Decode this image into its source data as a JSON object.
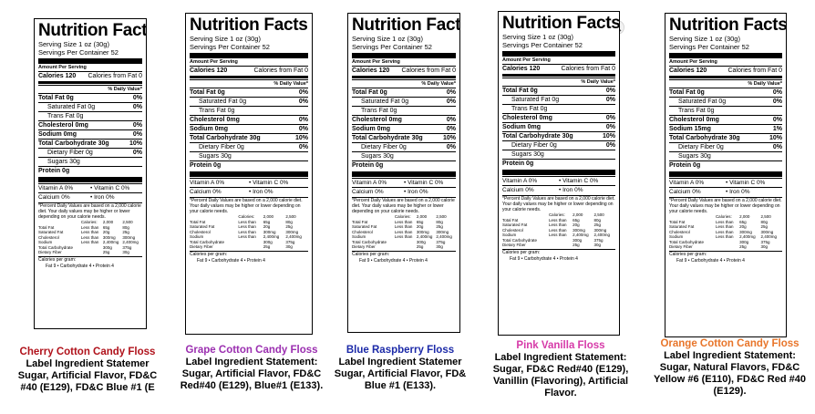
{
  "panels": [
    {
      "title": "Nutrition Facts",
      "serving_size": "Serving Size 1 oz (30g)",
      "servings": "Servings Per Container 52",
      "amount_per_serving": "Amount Per Serving",
      "calories": "Calories 120",
      "calories_fat": "Calories from Fat 0",
      "daily_value": "% Daily Value*",
      "total_fat": "Total Fat 0g",
      "total_fat_dv": "0%",
      "sat_fat": "Saturated Fat 0g",
      "sat_fat_dv": "0%",
      "trans_fat": "Trans Fat 0g",
      "cholesterol": "Cholesterol 0mg",
      "cholesterol_dv": "0%",
      "sodium": "Sodium 0mg",
      "sodium_dv": "0%",
      "carb": "Total Carbohydrate 30g",
      "carb_dv": "10%",
      "fiber": "Dietary Fiber 0g",
      "fiber_dv": "0%",
      "sugars": "Sugars 30g",
      "protein": "Protein 0g",
      "vit_a": "Vitamin A 0%",
      "vit_c": "• Vitamin C 0%",
      "calcium": "Calcium 0%",
      "iron": "• Iron 0%",
      "footnote": "*Percent Daily Values are based on a 2,000 calorie diet. Your daily values may be higher or lower depending on your calorie needs.",
      "cal_per_gram": "Calories per gram:",
      "cal_per_gram_vals": "Fat 9 • Carbohydrate 4 • Protein 4"
    },
    {
      "title": "Nutrition Facts",
      "serving_size": "Serving Size 1 oz (30g)",
      "servings": "Servings Per Container 52",
      "amount_per_serving": "Amount Per Serving",
      "calories": "Calories 120",
      "calories_fat": "Calories from Fat 0",
      "daily_value": "% Daily Value*",
      "total_fat": "Total Fat 0g",
      "total_fat_dv": "0%",
      "sat_fat": "Saturated Fat 0g",
      "sat_fat_dv": "0%",
      "trans_fat": "Trans Fat 0g",
      "cholesterol": "Cholesterol 0mg",
      "cholesterol_dv": "0%",
      "sodium": "Sodium 0mg",
      "sodium_dv": "0%",
      "carb": "Total Carbohydrate 30g",
      "carb_dv": "10%",
      "fiber": "Dietary Fiber 0g",
      "fiber_dv": "0%",
      "sugars": "Sugars 30g",
      "protein": "Protein 0g",
      "vit_a": "Vitamin A 0%",
      "vit_c": "• Vitamin C 0%",
      "calcium": "Calcium 0%",
      "iron": "• Iron 0%",
      "footnote": "*Percent Daily Values are based on a 2,000 calorie diet. Your daily values may be higher or lower depending on your calorie needs.",
      "cal_per_gram": "Calories per gram:",
      "cal_per_gram_vals": "Fat 9 • Carbohydrate 4 • Protein 4"
    },
    {
      "title": "Nutrition Facts",
      "serving_size": "Serving Size 1 oz (30g)",
      "servings": "Servings Per Container 52",
      "amount_per_serving": "Amount Per Serving",
      "calories": "Calories 120",
      "calories_fat": "Calories from Fat 0",
      "daily_value": "% Daily Value*",
      "total_fat": "Total Fat 0g",
      "total_fat_dv": "0%",
      "sat_fat": "Saturated Fat 0g",
      "sat_fat_dv": "0%",
      "trans_fat": "Trans Fat 0g",
      "cholesterol": "Cholesterol 0mg",
      "cholesterol_dv": "0%",
      "sodium": "Sodium 0mg",
      "sodium_dv": "0%",
      "carb": "Total Carbohydrate 30g",
      "carb_dv": "10%",
      "fiber": "Dietary Fiber 0g",
      "fiber_dv": "0%",
      "sugars": "Sugars 30g",
      "protein": "Protein 0g",
      "vit_a": "Vitamin A 0%",
      "vit_c": "• Vitamin C 0%",
      "calcium": "Calcium 0%",
      "iron": "• Iron 0%",
      "footnote": "*Percent Daily Values are based on a 2,000 calorie diet. Your daily values may be higher or lower depending on your calorie needs.",
      "cal_per_gram": "Calories per gram:",
      "cal_per_gram_vals": "Fat 9 • Carbohydrate 4 • Protein 4"
    },
    {
      "title": "Nutrition Facts",
      "serving_size": "Serving Size 1 oz (30g)",
      "servings": "Servings Per Container 52",
      "amount_per_serving": "Amount Per Serving",
      "calories": "Calories 120",
      "calories_fat": "Calories from Fat 0",
      "daily_value": "% Daily Value*",
      "total_fat": "Total Fat 0g",
      "total_fat_dv": "0%",
      "sat_fat": "Saturated Fat 0g",
      "sat_fat_dv": "0%",
      "trans_fat": "Trans Fat 0g",
      "cholesterol": "Cholesterol 0mg",
      "cholesterol_dv": "0%",
      "sodium": "Sodium 0mg",
      "sodium_dv": "0%",
      "carb": "Total Carbohydrate 30g",
      "carb_dv": "10%",
      "fiber": "Dietary Fiber 0g",
      "fiber_dv": "0%",
      "sugars": "Sugars 30g",
      "protein": "Protein 0g",
      "vit_a": "Vitamin A 0%",
      "vit_c": "• Vitamin C 0%",
      "calcium": "Calcium 0%",
      "iron": "• Iron 0%",
      "footnote": "*Percent Daily Values are based on a 2,000 calorie diet. Your daily values may be higher or lower depending on your calorie needs.",
      "cal_per_gram": "Calories per gram:",
      "cal_per_gram_vals": "Fat 9 • Carbohydrate 4 • Protein 4"
    },
    {
      "title": "Nutrition Facts",
      "serving_size": "Serving Size 1 oz (30g)",
      "servings": "Servings Per Container 52",
      "amount_per_serving": "Amount Per Serving",
      "calories": "Calories 120",
      "calories_fat": "Calories from Fat 0",
      "daily_value": "% Daily Value*",
      "total_fat": "Total Fat 0g",
      "total_fat_dv": "0%",
      "sat_fat": "Saturated Fat 0g",
      "sat_fat_dv": "0%",
      "trans_fat": "Trans Fat 0g",
      "cholesterol": "Cholesterol 0mg",
      "cholesterol_dv": "0%",
      "sodium": "Sodium 15mg",
      "sodium_dv": "1%",
      "carb": "Total Carbohydrate 30g",
      "carb_dv": "10%",
      "fiber": "Dietary Fiber 0g",
      "fiber_dv": "0%",
      "sugars": "Sugars 30g",
      "protein": "Protein 0g",
      "vit_a": "Vitamin A 0%",
      "vit_c": "• Vitamin C 0%",
      "calcium": "Calcium 0%",
      "iron": "• Iron 0%",
      "footnote": "*Percent Daily Values are based on a 2,000 calorie diet. Your daily values may be higher or lower depending on your calorie needs.",
      "cal_per_gram": "Calories per gram:",
      "cal_per_gram_vals": "Fat 9 • Carbohydrate 4 • Protein 4"
    }
  ],
  "footer_table": {
    "head": [
      "",
      "Calories:",
      "2,000",
      "2,500"
    ],
    "rows": [
      [
        "Total Fat",
        "Less than",
        "65g",
        "80g"
      ],
      [
        "Saturated Fat",
        "Less than",
        "20g",
        "25g"
      ],
      [
        "Cholesterol",
        "Less than",
        "300mg",
        "300mg"
      ],
      [
        "Sodium",
        "Less than",
        "2,400mg",
        "2,400mg"
      ],
      [
        "Total Carbohydrate",
        "",
        "300g",
        "375g"
      ],
      [
        "Dietary Fiber",
        "",
        "25g",
        "30g"
      ]
    ]
  },
  "captions": [
    {
      "name": "Cherry Cotton Candy Floss",
      "color": "#b0121b",
      "lines": [
        "Label Ingredient Statemer",
        "Sugar, Artificial Flavor, FD&C",
        "#40 (E129), FD&C Blue #1 (E"
      ]
    },
    {
      "name": "Grape Cotton Candy Floss",
      "color": "#9b2fb0",
      "lines": [
        "Label Ingredient Statement:",
        "Sugar, Artificial Flavor, FD&C",
        "Red#40 (E129), Blue#1 (E133)."
      ]
    },
    {
      "name": "Blue Raspberry Floss",
      "color": "#1c2aa8",
      "lines": [
        "Label Ingredient Statemer",
        "Sugar, Artificial Flavor, FD&",
        "Blue #1 (E133)."
      ]
    },
    {
      "name": "Pink Vanilla Floss",
      "color": "#d63aa8",
      "lines": [
        "Label Ingredient Statement:",
        "Sugar, FD&C Red#40 (E129),",
        "Vanillin (Flavoring), Artificial",
        "Flavor."
      ]
    },
    {
      "name": "Orange Cotton Candy Floss",
      "color": "#e8752a",
      "lines": [
        "Label Ingredient Statement:",
        "Sugar, Natural Flavors, FD&C",
        "Yellow #6 (E110), FD&C Red #40",
        "(E129)."
      ]
    }
  ]
}
